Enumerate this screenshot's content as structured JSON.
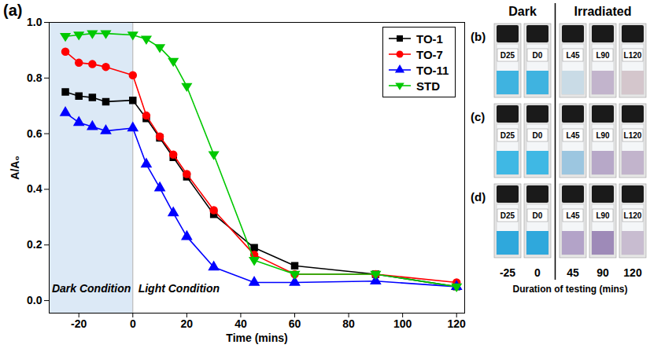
{
  "chart_data": {
    "type": "line",
    "panel": "(a)",
    "x_label": "Time (mins)",
    "y_label": "A/A₀",
    "x": [
      -25,
      -20,
      -15,
      -10,
      0,
      5,
      10,
      15,
      20,
      30,
      45,
      60,
      90,
      120
    ],
    "series": [
      {
        "name": "TO-1",
        "color": "#000000",
        "marker": "square",
        "values": [
          0.75,
          0.735,
          0.73,
          0.715,
          0.72,
          0.655,
          0.585,
          0.515,
          0.445,
          0.31,
          0.19,
          0.125,
          0.095,
          0.05
        ]
      },
      {
        "name": "TO-7",
        "color": "#ff0000",
        "marker": "circle",
        "values": [
          0.895,
          0.855,
          0.85,
          0.84,
          0.81,
          0.665,
          0.59,
          0.525,
          0.455,
          0.325,
          0.165,
          0.095,
          0.095,
          0.065
        ]
      },
      {
        "name": "TO-11",
        "color": "#0000ff",
        "marker": "triangle",
        "values": [
          0.675,
          0.64,
          0.625,
          0.61,
          0.62,
          0.49,
          0.405,
          0.315,
          0.23,
          0.12,
          0.065,
          0.065,
          0.07,
          0.05
        ]
      },
      {
        "name": "STD",
        "color": "#00c800",
        "marker": "triangle-down",
        "values": [
          0.95,
          0.955,
          0.96,
          0.96,
          0.955,
          0.94,
          0.91,
          0.86,
          0.77,
          0.525,
          0.145,
          0.095,
          0.095,
          0.05
        ]
      }
    ],
    "xlim": [
      -31,
      123
    ],
    "xticks": [
      -20,
      0,
      20,
      40,
      60,
      80,
      100,
      120
    ],
    "ylim": [
      -0.045,
      1.0
    ],
    "yticks": [
      {
        "value": 0,
        "label": "0.0"
      },
      {
        "value": 0.2,
        "label": "0.2"
      },
      {
        "value": 0.4,
        "label": "0.4"
      },
      {
        "value": 0.6,
        "label": "0.6"
      },
      {
        "value": 0.8,
        "label": "0.8"
      },
      {
        "value": 1.0,
        "label": "1.0"
      }
    ],
    "shaded": {
      "x1": -31,
      "x2": 0,
      "color": "#dce9f6"
    },
    "annotations": [
      {
        "text": "Dark Condition",
        "x": -30,
        "y": 0.03
      },
      {
        "text": "Light Condition",
        "x": 2,
        "y": 0.03
      }
    ],
    "legend": "top-right",
    "grid": false
  },
  "photo_panels": {
    "headers": [
      "Dark",
      "Irradiated"
    ],
    "rows": [
      {
        "letter": "(b)",
        "labels": [
          "D25",
          "D0",
          "L45",
          "L90",
          "L120"
        ],
        "colors": [
          "#3fb3e0",
          "#3fb3e0",
          "#c9dbe6",
          "#c2b4cc",
          "#d4c6cc"
        ]
      },
      {
        "letter": "(c)",
        "labels": [
          "D25",
          "D0",
          "L45",
          "L90",
          "L120"
        ],
        "colors": [
          "#3fb8e4",
          "#3fb8e4",
          "#9cc6e0",
          "#b7a8c8",
          "#c2b4cc"
        ]
      },
      {
        "letter": "(d)",
        "labels": [
          "D25",
          "D0",
          "L45",
          "L90",
          "L120"
        ],
        "colors": [
          "#2fa8dc",
          "#2fa8dc",
          "#b3a3c8",
          "#9e8ab8",
          "#c8bcd0"
        ]
      }
    ],
    "times": [
      -25,
      0,
      45,
      90,
      120
    ],
    "x_label": "Duration of testing (mins)"
  }
}
